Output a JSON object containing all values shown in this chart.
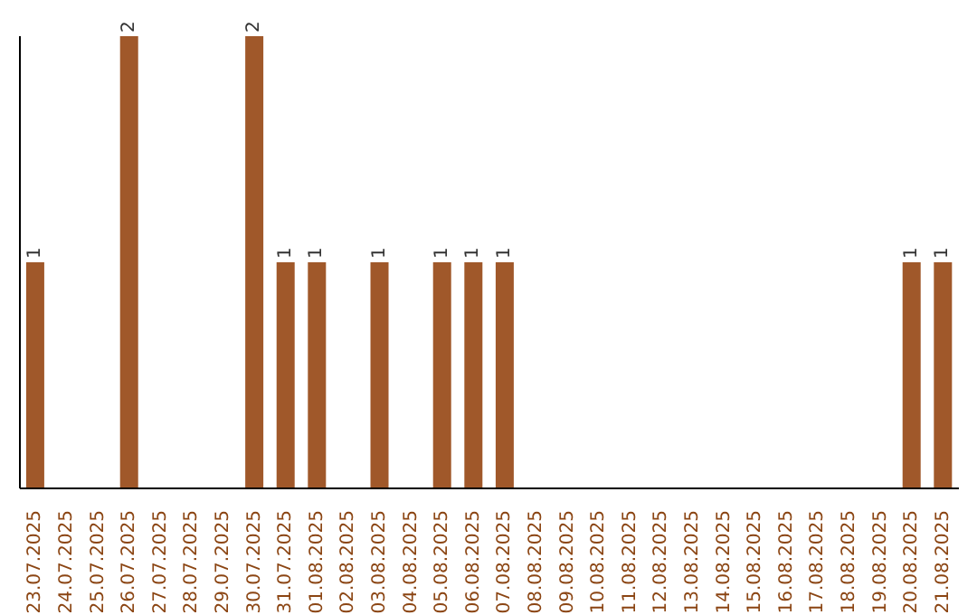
{
  "chart_data": {
    "type": "bar",
    "categories": [
      "23.07.2025",
      "24.07.2025",
      "25.07.2025",
      "26.07.2025",
      "27.07.2025",
      "28.07.2025",
      "29.07.2025",
      "30.07.2025",
      "31.07.2025",
      "01.08.2025",
      "02.08.2025",
      "03.08.2025",
      "04.08.2025",
      "05.08.2025",
      "06.08.2025",
      "07.08.2025",
      "08.08.2025",
      "09.08.2025",
      "10.08.2025",
      "11.08.2025",
      "12.08.2025",
      "13.08.2025",
      "14.08.2025",
      "15.08.2025",
      "16.08.2025",
      "17.08.2025",
      "18.08.2025",
      "19.08.2025",
      "20.08.2025",
      "21.08.2025"
    ],
    "values": [
      1,
      0,
      0,
      2,
      0,
      0,
      0,
      2,
      1,
      1,
      0,
      1,
      0,
      1,
      1,
      1,
      0,
      0,
      0,
      0,
      0,
      0,
      0,
      0,
      0,
      0,
      0,
      0,
      1,
      1
    ],
    "value_labels": [
      "1",
      null,
      null,
      "2",
      null,
      null,
      null,
      "2",
      "1",
      "1",
      null,
      "1",
      null,
      "1",
      "1",
      "1",
      null,
      null,
      null,
      null,
      null,
      null,
      null,
      null,
      null,
      null,
      null,
      null,
      "1",
      "1"
    ],
    "color": "#a0582a",
    "ylim": [
      0,
      2
    ],
    "tick_labels": "x",
    "grid": false,
    "legend": false
  }
}
